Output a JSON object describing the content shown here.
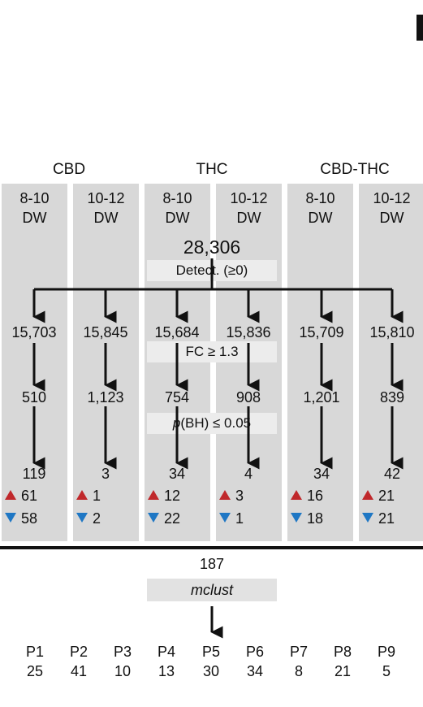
{
  "panel_mark": "",
  "groups": [
    {
      "name": "CBD"
    },
    {
      "name": "THC"
    },
    {
      "name": "CBD-THC"
    }
  ],
  "columns": [
    {
      "window": "8-10",
      "unit": "DW",
      "fc_pass": "15,703",
      "bh_pass": "510",
      "de_total": "119",
      "up": "61",
      "down": "58"
    },
    {
      "window": "10-12",
      "unit": "DW",
      "fc_pass": "15,845",
      "bh_pass": "1,123",
      "de_total": "3",
      "up": "1",
      "down": "2"
    },
    {
      "window": "8-10",
      "unit": "DW",
      "fc_pass": "15,684",
      "bh_pass": "754",
      "de_total": "34",
      "up": "12",
      "down": "22"
    },
    {
      "window": "10-12",
      "unit": "DW",
      "fc_pass": "15,836",
      "bh_pass": "908",
      "de_total": "4",
      "up": "3",
      "down": "1"
    },
    {
      "window": "8-10",
      "unit": "DW",
      "fc_pass": "15,709",
      "bh_pass": "1,201",
      "de_total": "34",
      "up": "16",
      "down": "18"
    },
    {
      "window": "10-12",
      "unit": "DW",
      "fc_pass": "15,810",
      "bh_pass": "839",
      "de_total": "42",
      "up": "21",
      "down": "21"
    }
  ],
  "steps": {
    "detected_total": "28,306",
    "detect_label": "Detect. (≥0)",
    "fc_label": "FC ≥ 1.3",
    "bh_label_prefix": "p",
    "bh_label_rest": "(BH) ≤ 0.05"
  },
  "bottom": {
    "total": "187",
    "method": "mclust",
    "clusters": [
      {
        "name": "P1",
        "count": "25"
      },
      {
        "name": "P2",
        "count": "41"
      },
      {
        "name": "P3",
        "count": "10"
      },
      {
        "name": "P4",
        "count": "13"
      },
      {
        "name": "P5",
        "count": "30"
      },
      {
        "name": "P6",
        "count": "34"
      },
      {
        "name": "P7",
        "count": "8"
      },
      {
        "name": "P8",
        "count": "21"
      },
      {
        "name": "P9",
        "count": "5"
      }
    ]
  },
  "colors": {
    "up_triangle": "#c0282b",
    "down_triangle": "#1f77c4",
    "column_bg": "#d8d8d8"
  }
}
